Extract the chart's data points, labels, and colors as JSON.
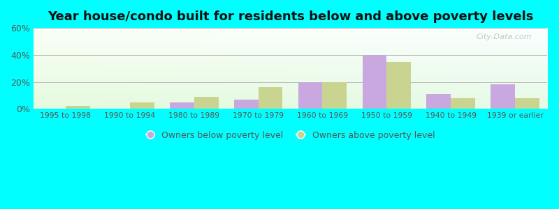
{
  "title": "Year house/condo built for residents below and above poverty levels",
  "categories": [
    "1995 to 1998",
    "1990 to 1994",
    "1980 to 1989",
    "1970 to 1979",
    "1960 to 1969",
    "1950 to 1959",
    "1940 to 1949",
    "1939 or earlier"
  ],
  "below_poverty": [
    0.0,
    0.0,
    5.0,
    7.0,
    20.0,
    40.0,
    11.0,
    18.0
  ],
  "above_poverty": [
    2.0,
    5.0,
    9.0,
    16.0,
    20.0,
    35.0,
    8.0,
    8.0
  ],
  "below_color": "#c9a8e0",
  "above_color": "#c8d490",
  "ylim": [
    0,
    60
  ],
  "yticks": [
    0,
    20,
    40,
    60
  ],
  "ytick_labels": [
    "0%",
    "20%",
    "40%",
    "60%"
  ],
  "background_outer": "#00ffff",
  "grid_color": "#bbbbbb",
  "title_fontsize": 13,
  "legend_below_label": "Owners below poverty level",
  "legend_above_label": "Owners above poverty level",
  "bar_width": 0.38,
  "tick_label_color": "#555555",
  "watermark": "City-Data.com"
}
